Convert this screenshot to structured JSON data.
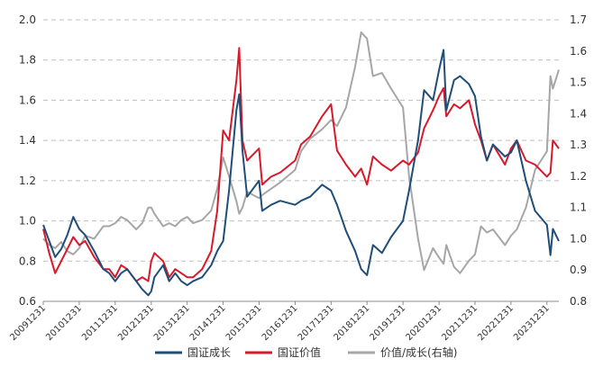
{
  "chart_data": {
    "type": "line",
    "x": [
      "20091231",
      "20101231",
      "20111231",
      "20121231",
      "20131231",
      "20141231",
      "20151231",
      "20161231",
      "20171231",
      "20181231",
      "20191231",
      "20201231",
      "20211231",
      "20221231",
      "20231231",
      "20240430"
    ],
    "x_tick_labels": [
      "20091231",
      "20101231",
      "20111231",
      "20121231",
      "20131231",
      "20141231",
      "20151231",
      "20161231",
      "20171231",
      "20181231",
      "20191231",
      "20201231",
      "20211231",
      "20221231",
      "20231231"
    ],
    "y_left": {
      "ylim": [
        0.6,
        2.0
      ],
      "ticks": [
        "0.6",
        "0.8",
        "1.0",
        "1.2",
        "1.4",
        "1.6",
        "1.8",
        "2.0"
      ]
    },
    "y_right": {
      "ylim": [
        0.8,
        1.7
      ],
      "ticks": [
        "0.8",
        "0.9",
        "1.0",
        "1.1",
        "1.2",
        "1.3",
        "1.4",
        "1.5",
        "1.6",
        "1.7"
      ]
    },
    "grid": true,
    "legend_position": "bottom",
    "series": [
      {
        "name": "国证成长",
        "axis": "left",
        "color": "#1f4e79",
        "points": [
          [
            "20091231",
            0.98
          ],
          [
            "20100301",
            0.9
          ],
          [
            "20100501",
            0.82
          ],
          [
            "20100701",
            0.86
          ],
          [
            "20100901",
            0.93
          ],
          [
            "20101101",
            1.02
          ],
          [
            "20101231",
            0.96
          ],
          [
            "20110301",
            0.93
          ],
          [
            "20110601",
            0.85
          ],
          [
            "20110901",
            0.76
          ],
          [
            "20111101",
            0.74
          ],
          [
            "20111231",
            0.7
          ],
          [
            "20120301",
            0.74
          ],
          [
            "20120501",
            0.76
          ],
          [
            "20120801",
            0.7
          ],
          [
            "20121001",
            0.66
          ],
          [
            "20121201",
            0.63
          ],
          [
            "20121231",
            0.65
          ],
          [
            "20130201",
            0.72
          ],
          [
            "20130501",
            0.78
          ],
          [
            "20130701",
            0.7
          ],
          [
            "20130901",
            0.74
          ],
          [
            "20131101",
            0.7
          ],
          [
            "20131231",
            0.68
          ],
          [
            "20140301",
            0.7
          ],
          [
            "20140601",
            0.72
          ],
          [
            "20140901",
            0.78
          ],
          [
            "20141101",
            0.85
          ],
          [
            "20141231",
            0.9
          ],
          [
            "20150301",
            1.15
          ],
          [
            "20150515",
            1.55
          ],
          [
            "20150612",
            1.63
          ],
          [
            "20150715",
            1.35
          ],
          [
            "20150901",
            1.12
          ],
          [
            "20151231",
            1.2
          ],
          [
            "20160201",
            1.05
          ],
          [
            "20160501",
            1.08
          ],
          [
            "20160801",
            1.1
          ],
          [
            "20161231",
            1.08
          ],
          [
            "20170301",
            1.1
          ],
          [
            "20170601",
            1.12
          ],
          [
            "20171001",
            1.18
          ],
          [
            "20171231",
            1.15
          ],
          [
            "20180301",
            1.08
          ],
          [
            "20180601",
            0.95
          ],
          [
            "20180901",
            0.85
          ],
          [
            "20181101",
            0.76
          ],
          [
            "20181231",
            0.73
          ],
          [
            "20190301",
            0.88
          ],
          [
            "20190601",
            0.84
          ],
          [
            "20190901",
            0.92
          ],
          [
            "20191231",
            1.0
          ],
          [
            "20200301",
            1.15
          ],
          [
            "20200601",
            1.4
          ],
          [
            "20200801",
            1.65
          ],
          [
            "20201031",
            1.6
          ],
          [
            "20201231",
            1.75
          ],
          [
            "20210215",
            1.85
          ],
          [
            "20210315",
            1.55
          ],
          [
            "20210601",
            1.7
          ],
          [
            "20210801",
            1.72
          ],
          [
            "20211031",
            1.68
          ],
          [
            "20211231",
            1.62
          ],
          [
            "20220301",
            1.42
          ],
          [
            "20220501",
            1.3
          ],
          [
            "20220701",
            1.38
          ],
          [
            "20221031",
            1.32
          ],
          [
            "20221231",
            1.34
          ],
          [
            "20230301",
            1.4
          ],
          [
            "20230601",
            1.2
          ],
          [
            "20230901",
            1.05
          ],
          [
            "20231231",
            0.98
          ],
          [
            "20240205",
            0.83
          ],
          [
            "20240301",
            0.96
          ],
          [
            "20240430",
            0.9
          ]
        ]
      },
      {
        "name": "国证价值",
        "axis": "left",
        "color": "#d7192b",
        "points": [
          [
            "20091231",
            0.96
          ],
          [
            "20100301",
            0.84
          ],
          [
            "20100501",
            0.74
          ],
          [
            "20100701",
            0.8
          ],
          [
            "20100901",
            0.86
          ],
          [
            "20101101",
            0.92
          ],
          [
            "20101231",
            0.88
          ],
          [
            "20110301",
            0.9
          ],
          [
            "20110601",
            0.82
          ],
          [
            "20110901",
            0.76
          ],
          [
            "20111101",
            0.76
          ],
          [
            "20111231",
            0.72
          ],
          [
            "20120301",
            0.78
          ],
          [
            "20120501",
            0.76
          ],
          [
            "20120801",
            0.7
          ],
          [
            "20121001",
            0.72
          ],
          [
            "20121201",
            0.7
          ],
          [
            "20121231",
            0.8
          ],
          [
            "20130201",
            0.84
          ],
          [
            "20130501",
            0.8
          ],
          [
            "20130701",
            0.72
          ],
          [
            "20130901",
            0.76
          ],
          [
            "20131101",
            0.74
          ],
          [
            "20131231",
            0.72
          ],
          [
            "20140301",
            0.72
          ],
          [
            "20140601",
            0.76
          ],
          [
            "20140901",
            0.85
          ],
          [
            "20141101",
            1.05
          ],
          [
            "20141231",
            1.45
          ],
          [
            "20150301",
            1.4
          ],
          [
            "20150515",
            1.7
          ],
          [
            "20150612",
            1.86
          ],
          [
            "20150715",
            1.4
          ],
          [
            "20150901",
            1.3
          ],
          [
            "20151231",
            1.36
          ],
          [
            "20160201",
            1.18
          ],
          [
            "20160501",
            1.22
          ],
          [
            "20160801",
            1.24
          ],
          [
            "20161231",
            1.3
          ],
          [
            "20170301",
            1.38
          ],
          [
            "20170601",
            1.42
          ],
          [
            "20171001",
            1.52
          ],
          [
            "20171231",
            1.58
          ],
          [
            "20180301",
            1.35
          ],
          [
            "20180601",
            1.28
          ],
          [
            "20180901",
            1.22
          ],
          [
            "20181101",
            1.26
          ],
          [
            "20181231",
            1.18
          ],
          [
            "20190301",
            1.32
          ],
          [
            "20190601",
            1.28
          ],
          [
            "20190901",
            1.25
          ],
          [
            "20191231",
            1.3
          ],
          [
            "20200301",
            1.28
          ],
          [
            "20200601",
            1.34
          ],
          [
            "20200801",
            1.46
          ],
          [
            "20201031",
            1.55
          ],
          [
            "20201231",
            1.62
          ],
          [
            "20210215",
            1.66
          ],
          [
            "20210315",
            1.52
          ],
          [
            "20210601",
            1.58
          ],
          [
            "20210801",
            1.56
          ],
          [
            "20211031",
            1.6
          ],
          [
            "20211231",
            1.48
          ],
          [
            "20220301",
            1.4
          ],
          [
            "20220501",
            1.3
          ],
          [
            "20220701",
            1.38
          ],
          [
            "20221031",
            1.28
          ],
          [
            "20221231",
            1.36
          ],
          [
            "20230301",
            1.4
          ],
          [
            "20230601",
            1.3
          ],
          [
            "20230901",
            1.28
          ],
          [
            "20231231",
            1.22
          ],
          [
            "20240205",
            1.24
          ],
          [
            "20240301",
            1.4
          ],
          [
            "20240430",
            1.36
          ]
        ]
      },
      {
        "name": "价值/成长(右轴)",
        "axis": "right",
        "color": "#a6a6a6",
        "points": [
          [
            "20091231",
            1.0
          ],
          [
            "20100301",
            0.98
          ],
          [
            "20100501",
            0.97
          ],
          [
            "20100701",
            0.99
          ],
          [
            "20100901",
            0.96
          ],
          [
            "20101101",
            0.95
          ],
          [
            "20101231",
            0.97
          ],
          [
            "20110301",
            1.01
          ],
          [
            "20110601",
            1.0
          ],
          [
            "20110901",
            1.04
          ],
          [
            "20111101",
            1.04
          ],
          [
            "20111231",
            1.05
          ],
          [
            "20120301",
            1.07
          ],
          [
            "20120501",
            1.06
          ],
          [
            "20120801",
            1.03
          ],
          [
            "20121001",
            1.05
          ],
          [
            "20121201",
            1.1
          ],
          [
            "20121231",
            1.1
          ],
          [
            "20130201",
            1.08
          ],
          [
            "20130501",
            1.04
          ],
          [
            "20130701",
            1.05
          ],
          [
            "20130901",
            1.04
          ],
          [
            "20131101",
            1.06
          ],
          [
            "20131231",
            1.07
          ],
          [
            "20140301",
            1.05
          ],
          [
            "20140601",
            1.06
          ],
          [
            "20140901",
            1.09
          ],
          [
            "20141101",
            1.16
          ],
          [
            "20141231",
            1.26
          ],
          [
            "20150301",
            1.2
          ],
          [
            "20150515",
            1.12
          ],
          [
            "20150612",
            1.08
          ],
          [
            "20150715",
            1.1
          ],
          [
            "20150901",
            1.15
          ],
          [
            "20151231",
            1.13
          ],
          [
            "20160201",
            1.14
          ],
          [
            "20160501",
            1.16
          ],
          [
            "20160801",
            1.18
          ],
          [
            "20161231",
            1.22
          ],
          [
            "20170301",
            1.28
          ],
          [
            "20170601",
            1.32
          ],
          [
            "20171001",
            1.35
          ],
          [
            "20171231",
            1.38
          ],
          [
            "20180301",
            1.36
          ],
          [
            "20180601",
            1.42
          ],
          [
            "20180901",
            1.55
          ],
          [
            "20181101",
            1.66
          ],
          [
            "20181231",
            1.64
          ],
          [
            "20190301",
            1.52
          ],
          [
            "20190601",
            1.53
          ],
          [
            "20190901",
            1.48
          ],
          [
            "20191231",
            1.42
          ],
          [
            "20200301",
            1.2
          ],
          [
            "20200601",
            1.0
          ],
          [
            "20200801",
            0.9
          ],
          [
            "20201031",
            0.97
          ],
          [
            "20201231",
            0.94
          ],
          [
            "20210215",
            0.92
          ],
          [
            "20210315",
            0.98
          ],
          [
            "20210601",
            0.91
          ],
          [
            "20210801",
            0.89
          ],
          [
            "20211031",
            0.93
          ],
          [
            "20211231",
            0.95
          ],
          [
            "20220301",
            1.04
          ],
          [
            "20220501",
            1.02
          ],
          [
            "20220701",
            1.03
          ],
          [
            "20221031",
            0.98
          ],
          [
            "20221231",
            1.01
          ],
          [
            "20230301",
            1.03
          ],
          [
            "20230601",
            1.1
          ],
          [
            "20230901",
            1.22
          ],
          [
            "20231231",
            1.28
          ],
          [
            "20240205",
            1.52
          ],
          [
            "20240301",
            1.48
          ],
          [
            "20240430",
            1.54
          ]
        ]
      }
    ]
  }
}
